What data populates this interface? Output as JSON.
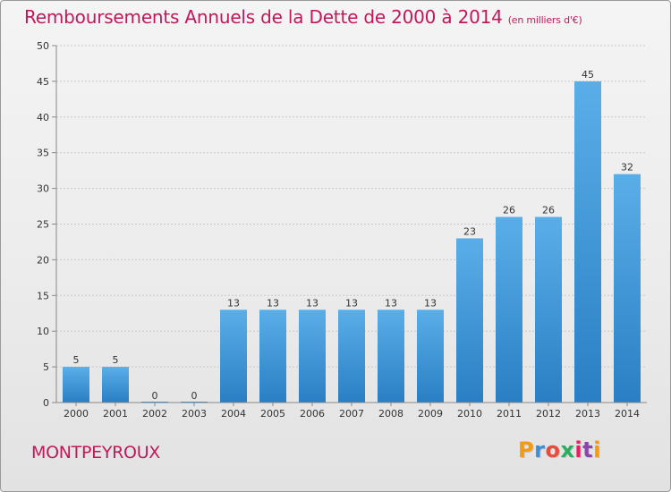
{
  "header": {
    "title": "Remboursements Annuels de la Dette de 2000 à 2014",
    "subtitle": "(en milliers d'€)"
  },
  "footer": {
    "commune": "MONTPEYROUX",
    "brand": "Proxiti",
    "brand_colors": [
      "#f39c12",
      "#3a8fd6",
      "#e74c3c",
      "#27ae60",
      "#e91e63",
      "#8e44ad",
      "#f39c12"
    ]
  },
  "colors": {
    "bar_top": "#5aaee8",
    "bar_bottom": "#2a7fc4",
    "title": "#c2185b",
    "grid": "#c8c8c8",
    "axis_text": "#333333"
  },
  "chart_data": {
    "type": "bar",
    "categories": [
      "2000",
      "2001",
      "2002",
      "2003",
      "2004",
      "2005",
      "2006",
      "2007",
      "2008",
      "2009",
      "2010",
      "2011",
      "2012",
      "2013",
      "2014"
    ],
    "values": [
      5,
      5,
      0,
      0,
      13,
      13,
      13,
      13,
      13,
      13,
      23,
      26,
      26,
      45,
      32
    ],
    "title": "Remboursements Annuels de la Dette de 2000 à 2014",
    "subtitle": "(en milliers d'€)",
    "xlabel": "",
    "ylabel": "",
    "ylim": [
      0,
      50
    ],
    "yticks": [
      0,
      5,
      10,
      15,
      20,
      25,
      30,
      35,
      40,
      45,
      50
    ],
    "grid": true,
    "data_labels": true
  }
}
